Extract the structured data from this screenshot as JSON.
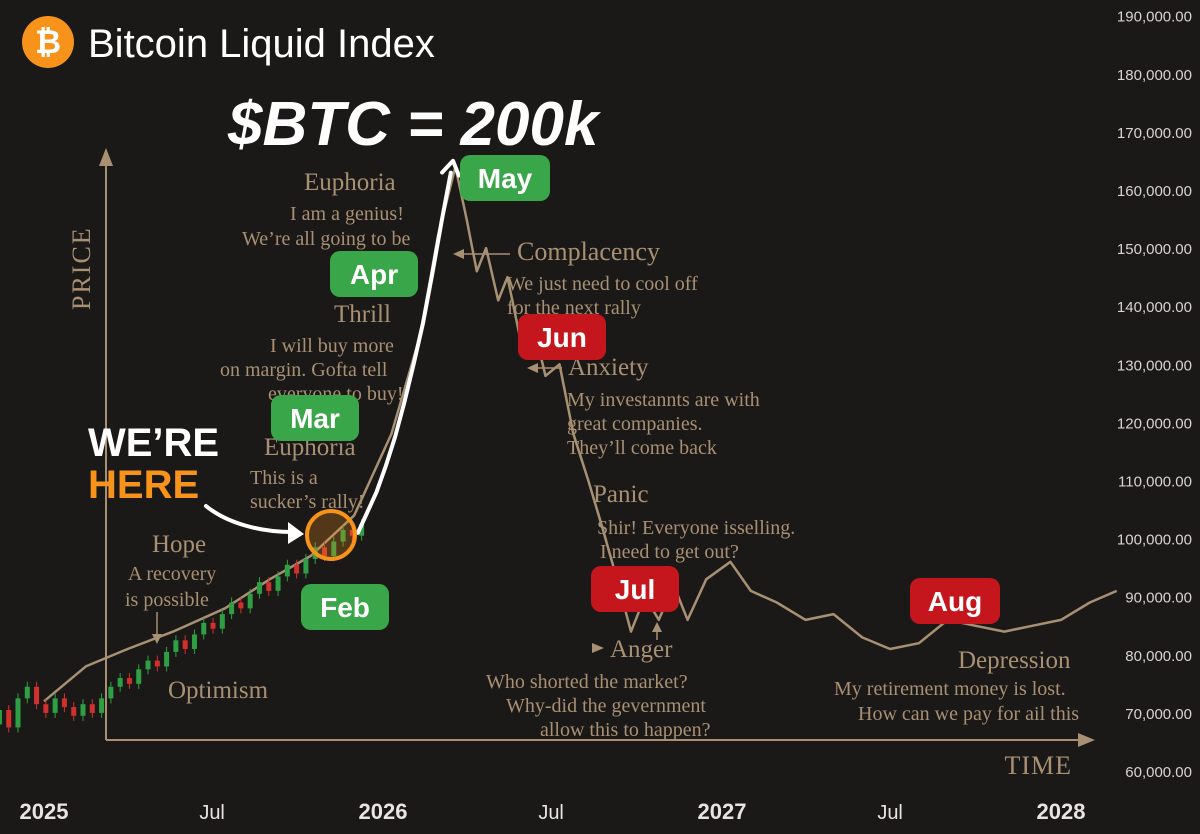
{
  "header": {
    "title": "Bitcoin Liquid Index",
    "headline": "$BTC = 200k",
    "logo_glyph": "₿",
    "logo_color": "#f7931a"
  },
  "chart_data": {
    "type": "line",
    "title": "Bitcoin Liquid Index",
    "xlabel": "TIME",
    "ylabel": "PRICE",
    "ylim": [
      60000,
      190000
    ],
    "y_ticks": [
      "190,000.00",
      "180,000.00",
      "170,000.00",
      "160,000.00",
      "150,000.00",
      "140,000.00",
      "130,000.00",
      "120,000.00",
      "110,000.00",
      "100,000.00",
      "90,000.00",
      "80,000.00",
      "70,000.00",
      "60,000.00"
    ],
    "y_tick_values": [
      190000,
      180000,
      170000,
      160000,
      150000,
      140000,
      130000,
      120000,
      110000,
      100000,
      90000,
      80000,
      70000,
      60000
    ],
    "x_ticks": [
      {
        "label": "2025",
        "date": "2025-01-01",
        "bold": true
      },
      {
        "label": "Jul",
        "date": "2025-07-01",
        "bold": false
      },
      {
        "label": "2026",
        "date": "2026-01-01",
        "bold": true
      },
      {
        "label": "Jul",
        "date": "2026-07-01",
        "bold": false
      },
      {
        "label": "2027",
        "date": "2027-01-01",
        "bold": true
      },
      {
        "label": "Jul",
        "date": "2027-07-01",
        "bold": false
      },
      {
        "label": "2028",
        "date": "2028-01-01",
        "bold": true
      }
    ],
    "series": [
      {
        "kind": "candlestick",
        "up_color": "#2ea043",
        "down_color": "#d0312d",
        "candles": [
          {
            "d": "2024-11-04",
            "o": 66000,
            "c": 68000
          },
          {
            "d": "2024-11-14",
            "o": 68000,
            "c": 70500
          },
          {
            "d": "2024-11-24",
            "o": 70500,
            "c": 67500
          },
          {
            "d": "2024-12-04",
            "o": 67500,
            "c": 72500
          },
          {
            "d": "2024-12-14",
            "o": 72500,
            "c": 74500
          },
          {
            "d": "2024-12-24",
            "o": 74500,
            "c": 71500
          },
          {
            "d": "2025-01-03",
            "o": 71500,
            "c": 70000
          },
          {
            "d": "2025-01-13",
            "o": 70000,
            "c": 72500
          },
          {
            "d": "2025-01-23",
            "o": 72500,
            "c": 71000
          },
          {
            "d": "2025-02-02",
            "o": 71000,
            "c": 69500
          },
          {
            "d": "2025-02-12",
            "o": 69500,
            "c": 71500
          },
          {
            "d": "2025-02-22",
            "o": 71500,
            "c": 70000
          },
          {
            "d": "2025-03-04",
            "o": 70000,
            "c": 72500
          },
          {
            "d": "2025-03-14",
            "o": 72500,
            "c": 74500
          },
          {
            "d": "2025-03-24",
            "o": 74500,
            "c": 76000
          },
          {
            "d": "2025-04-03",
            "o": 76000,
            "c": 75000
          },
          {
            "d": "2025-04-13",
            "o": 75000,
            "c": 77500
          },
          {
            "d": "2025-04-23",
            "o": 77500,
            "c": 79000
          },
          {
            "d": "2025-05-03",
            "o": 79000,
            "c": 78000
          },
          {
            "d": "2025-05-13",
            "o": 78000,
            "c": 80500
          },
          {
            "d": "2025-05-23",
            "o": 80500,
            "c": 82500
          },
          {
            "d": "2025-06-02",
            "o": 82500,
            "c": 81000
          },
          {
            "d": "2025-06-12",
            "o": 81000,
            "c": 83500
          },
          {
            "d": "2025-06-22",
            "o": 83500,
            "c": 85500
          },
          {
            "d": "2025-07-02",
            "o": 85500,
            "c": 84500
          },
          {
            "d": "2025-07-12",
            "o": 84500,
            "c": 87000
          },
          {
            "d": "2025-07-22",
            "o": 87000,
            "c": 89000
          },
          {
            "d": "2025-08-01",
            "o": 89000,
            "c": 88000
          },
          {
            "d": "2025-08-11",
            "o": 88000,
            "c": 90500
          },
          {
            "d": "2025-08-21",
            "o": 90500,
            "c": 92500
          },
          {
            "d": "2025-08-31",
            "o": 92500,
            "c": 91000
          },
          {
            "d": "2025-09-10",
            "o": 91000,
            "c": 93500
          },
          {
            "d": "2025-09-20",
            "o": 93500,
            "c": 95500
          },
          {
            "d": "2025-09-30",
            "o": 95500,
            "c": 94000
          },
          {
            "d": "2025-10-10",
            "o": 94000,
            "c": 96500
          },
          {
            "d": "2025-10-20",
            "o": 96500,
            "c": 98500
          },
          {
            "d": "2025-10-30",
            "o": 98500,
            "c": 97000
          },
          {
            "d": "2025-11-09",
            "o": 97000,
            "c": 99500
          },
          {
            "d": "2025-11-19",
            "o": 99500,
            "c": 101500
          },
          {
            "d": "2025-11-29",
            "o": 101500,
            "c": 100500
          },
          {
            "d": "2025-12-09",
            "o": 100500,
            "c": 102500
          }
        ]
      },
      {
        "kind": "projection",
        "color": "#ffffff",
        "points": [
          {
            "d": "2025-12-05",
            "v": 101000
          },
          {
            "d": "2025-12-15",
            "v": 104500
          },
          {
            "d": "2025-12-25",
            "v": 108000
          },
          {
            "d": "2026-01-04",
            "v": 112500
          },
          {
            "d": "2026-01-14",
            "v": 117500
          },
          {
            "d": "2026-01-24",
            "v": 123500
          },
          {
            "d": "2026-02-03",
            "v": 130000
          },
          {
            "d": "2026-02-13",
            "v": 137000
          },
          {
            "d": "2026-02-23",
            "v": 145500
          },
          {
            "d": "2026-03-05",
            "v": 154500
          },
          {
            "d": "2026-03-15",
            "v": 163000
          }
        ]
      },
      {
        "kind": "psychology-cycle",
        "color": "#a89073",
        "points": [
          {
            "d": "2025-01-01",
            "v": 72000
          },
          {
            "d": "2025-02-15",
            "v": 78000
          },
          {
            "d": "2025-04-01",
            "v": 81000
          },
          {
            "d": "2025-05-20",
            "v": 84000
          },
          {
            "d": "2025-07-15",
            "v": 88000
          },
          {
            "d": "2025-09-01",
            "v": 93000
          },
          {
            "d": "2025-10-15",
            "v": 97000
          },
          {
            "d": "2025-12-01",
            "v": 104000
          },
          {
            "d": "2026-01-10",
            "v": 118000
          },
          {
            "d": "2026-02-10",
            "v": 135000
          },
          {
            "d": "2026-03-01",
            "v": 152000
          },
          {
            "d": "2026-03-20",
            "v": 164000
          },
          {
            "d": "2026-04-01",
            "v": 155000
          },
          {
            "d": "2026-04-12",
            "v": 146000
          },
          {
            "d": "2026-04-22",
            "v": 150000
          },
          {
            "d": "2026-05-05",
            "v": 141000
          },
          {
            "d": "2026-05-15",
            "v": 145000
          },
          {
            "d": "2026-05-28",
            "v": 135000
          },
          {
            "d": "2026-06-10",
            "v": 138000
          },
          {
            "d": "2026-06-25",
            "v": 128000
          },
          {
            "d": "2026-07-10",
            "v": 130000
          },
          {
            "d": "2026-07-25",
            "v": 118000
          },
          {
            "d": "2026-08-10",
            "v": 110000
          },
          {
            "d": "2026-08-25",
            "v": 102000
          },
          {
            "d": "2026-09-10",
            "v": 93000
          },
          {
            "d": "2026-09-25",
            "v": 84000
          },
          {
            "d": "2026-10-10",
            "v": 90000
          },
          {
            "d": "2026-10-25",
            "v": 86000
          },
          {
            "d": "2026-11-10",
            "v": 92000
          },
          {
            "d": "2026-11-25",
            "v": 86000
          },
          {
            "d": "2026-12-15",
            "v": 93000
          },
          {
            "d": "2027-01-10",
            "v": 96000
          },
          {
            "d": "2027-02-01",
            "v": 91000
          },
          {
            "d": "2027-03-01",
            "v": 89000
          },
          {
            "d": "2027-04-01",
            "v": 86000
          },
          {
            "d": "2027-05-01",
            "v": 87000
          },
          {
            "d": "2027-06-01",
            "v": 83000
          },
          {
            "d": "2027-07-01",
            "v": 81000
          },
          {
            "d": "2027-08-01",
            "v": 82000
          },
          {
            "d": "2027-09-01",
            "v": 86000
          },
          {
            "d": "2027-10-01",
            "v": 85000
          },
          {
            "d": "2027-11-01",
            "v": 84000
          },
          {
            "d": "2027-12-01",
            "v": 85000
          },
          {
            "d": "2028-01-01",
            "v": 86000
          },
          {
            "d": "2028-02-01",
            "v": 89000
          },
          {
            "d": "2028-03-01",
            "v": 91000
          }
        ]
      }
    ],
    "month_badges": [
      {
        "label": "Feb",
        "type": "green"
      },
      {
        "label": "Mar",
        "type": "green"
      },
      {
        "label": "Apr",
        "type": "green"
      },
      {
        "label": "May",
        "type": "green"
      },
      {
        "label": "Jun",
        "type": "red"
      },
      {
        "label": "Jul",
        "type": "red"
      },
      {
        "label": "Aug",
        "type": "red"
      }
    ],
    "badge_colors": {
      "green": "#3aa64a",
      "red": "#c4161c"
    },
    "callout": {
      "line1": "WE’RE",
      "line2": "HERE",
      "line2_color": "#f7931a"
    },
    "annotations": {
      "optimism": "Optimism",
      "hope": "Hope",
      "hope_sub": [
        "A recovery",
        "is possible"
      ],
      "euphoria1": "Euphoria",
      "euphoria1_sub": [
        "This is a",
        "sucker’s rally!"
      ],
      "thrill": "Thrill",
      "thrill_sub": [
        "I will buy more",
        "on margin. Gofta tell",
        "everyone to buy!"
      ],
      "euphoria2": "Euphoria",
      "euphoria2_sub": [
        "I am a genius!",
        "We’re all going to be"
      ],
      "complacency": "Complacency",
      "complacency_sub": [
        "We just need to cool off",
        "for the next rally"
      ],
      "anxiety": "Anxiety",
      "anxiety_sub": [
        "My investannts are with",
        "great companies.",
        "They’ll come back"
      ],
      "panic": "Panic",
      "panic_sub": [
        "Shir! Everyone isselling.",
        "I need to get out?"
      ],
      "anger": "Anger",
      "anger_sub": [
        "Who shorted the market?",
        "Why-did the gevernment",
        "allow this to happen?"
      ],
      "depression": "Depression",
      "depression_sub": [
        "My retirement money is lost.",
        "How can we pay for ail this"
      ]
    }
  }
}
